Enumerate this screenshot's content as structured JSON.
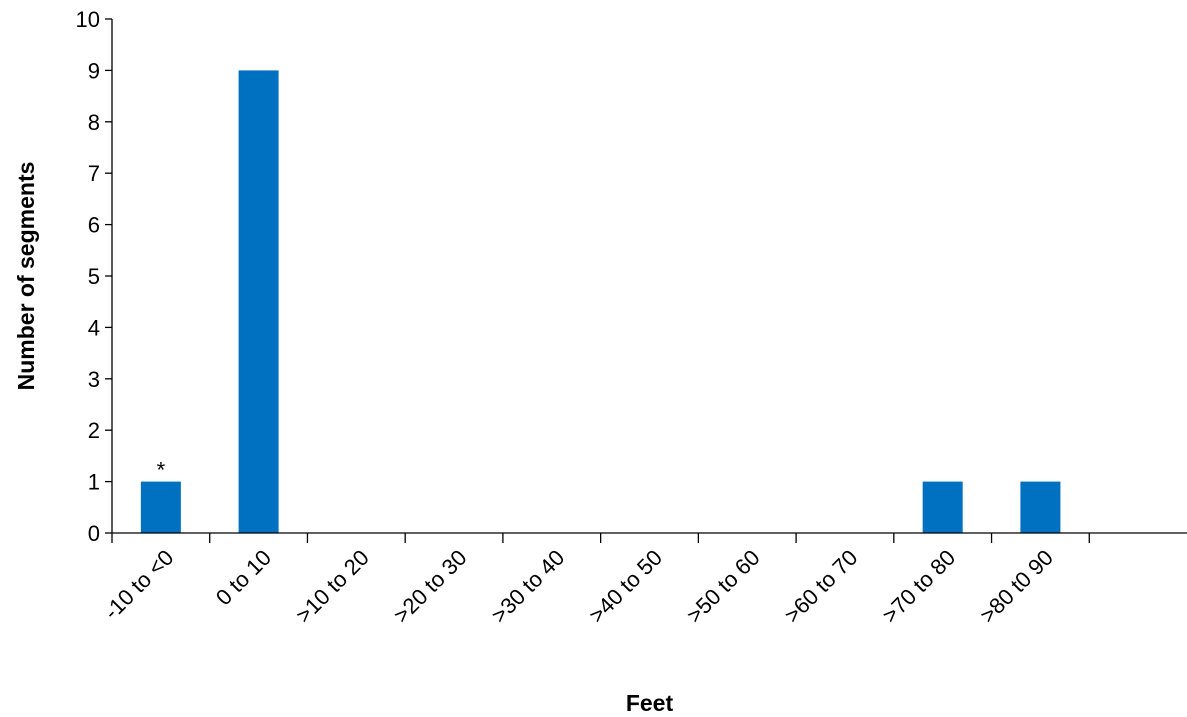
{
  "chart_data": {
    "type": "bar",
    "categories": [
      "-10 to <0",
      "0 to 10",
      ">10 to 20",
      ">20 to 30",
      ">30 to 40",
      ">40 to 50",
      ">50 to 60",
      ">60 to 70",
      ">70 to 80",
      ">80 t0 90"
    ],
    "values": [
      1,
      9,
      0,
      0,
      0,
      0,
      0,
      0,
      1,
      1
    ],
    "title": "",
    "xlabel": "Feet",
    "ylabel": "Number of segments",
    "ylim": [
      0,
      10
    ],
    "yticks": [
      "0",
      "1",
      "2",
      "3",
      "4",
      "5",
      "6",
      "7",
      "8",
      "9",
      "10"
    ],
    "bar_color": "#0070C0",
    "grid": false,
    "annotations": [
      {
        "category": "-10 to <0",
        "text": "*"
      }
    ]
  }
}
